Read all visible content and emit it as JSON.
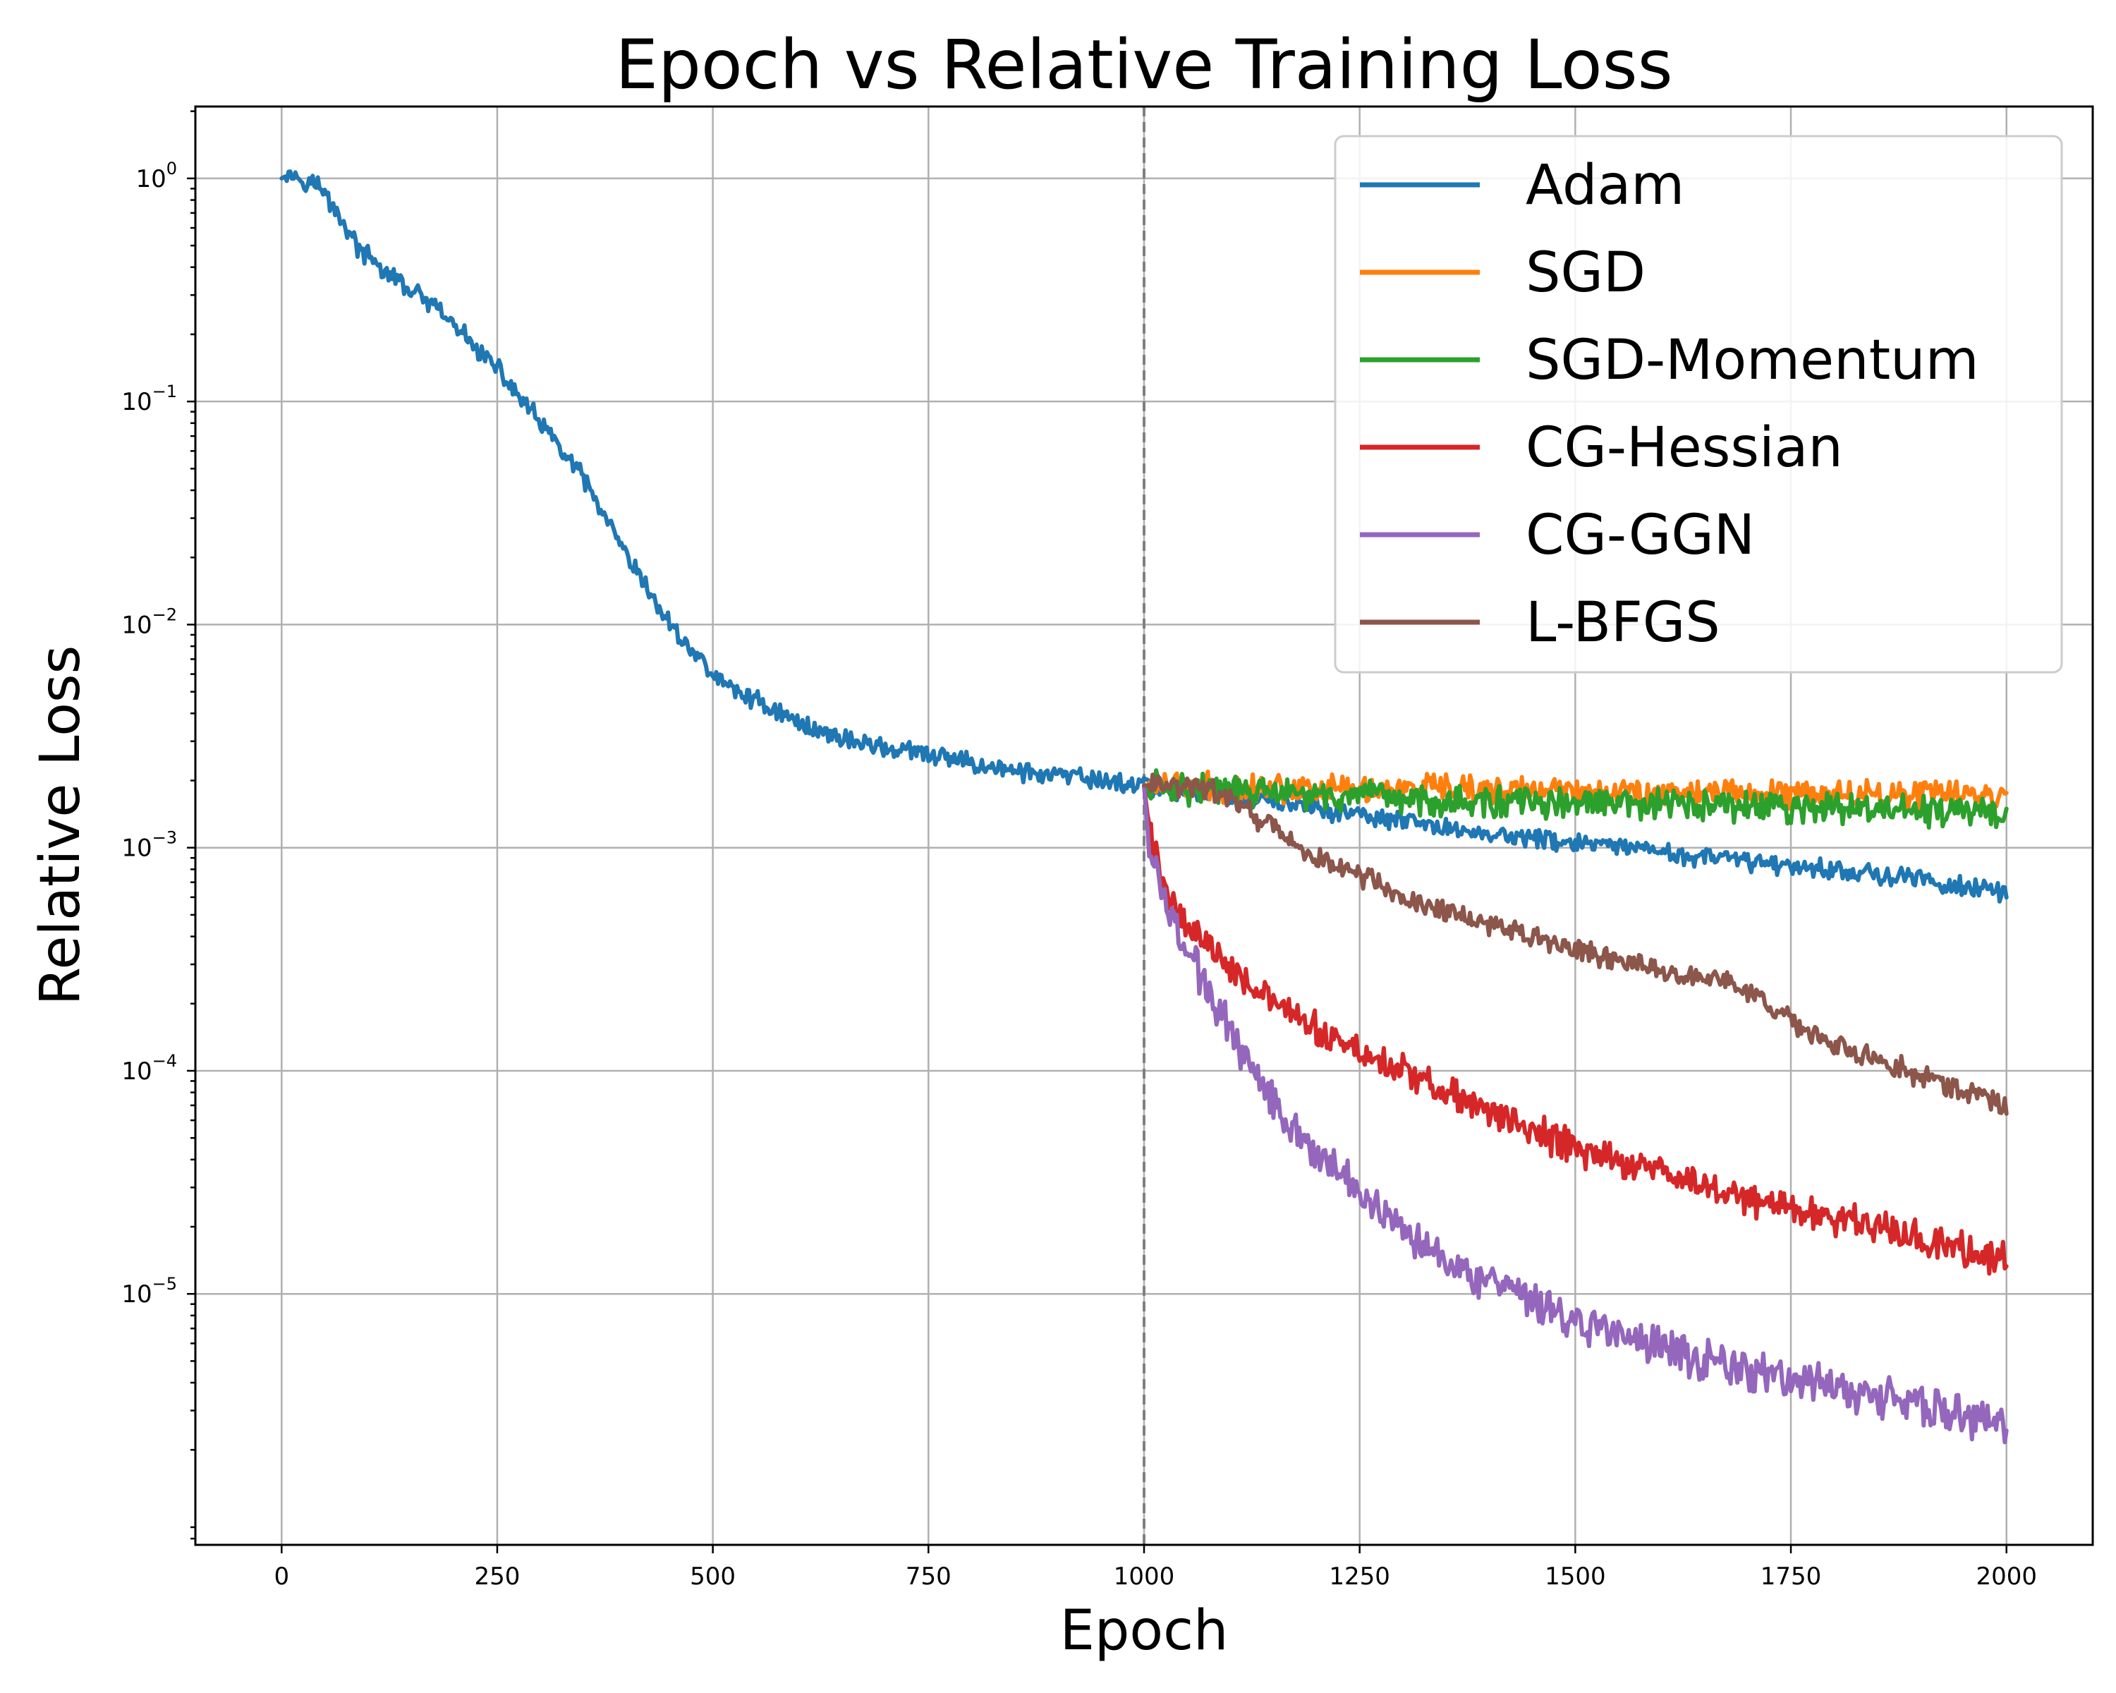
{
  "chart_data": {
    "type": "line",
    "title": "Epoch vs Relative Training Loss",
    "xlabel": "Epoch",
    "ylabel": "Relative Loss",
    "xlim": [
      -100,
      2100
    ],
    "ylim": [
      7.5e-07,
      2.1
    ],
    "yscale": "log",
    "grid": true,
    "legend_position": "top-right",
    "x_ticks": [
      0,
      250,
      500,
      750,
      1000,
      1250,
      1500,
      1750,
      2000
    ],
    "x_tick_labels": [
      "0",
      "250",
      "500",
      "750",
      "1000",
      "1250",
      "1500",
      "1750",
      "2000"
    ],
    "y_ticks": [
      1,
      0.1,
      0.01,
      0.001,
      0.0001,
      1e-05
    ],
    "y_tick_labels": [
      {
        "base": "10",
        "exp": "0"
      },
      {
        "base": "10",
        "exp": "−1"
      },
      {
        "base": "10",
        "exp": "−2"
      },
      {
        "base": "10",
        "exp": "−3"
      },
      {
        "base": "10",
        "exp": "−4"
      },
      {
        "base": "10",
        "exp": "−5"
      }
    ],
    "switch_epoch": 1000,
    "series": [
      {
        "name": "Adam",
        "color": "#1f77b4",
        "x": [
          0,
          10,
          40,
          60,
          90,
          120,
          180,
          250,
          300,
          350,
          400,
          450,
          500,
          520,
          560,
          600,
          650,
          700,
          750,
          800,
          850,
          900,
          950,
          1000,
          1100,
          1200,
          1300,
          1400,
          1500,
          1600,
          1700,
          1800,
          1900,
          2000
        ],
        "y": [
          1.0,
          1.05,
          0.95,
          0.75,
          0.48,
          0.38,
          0.26,
          0.14,
          0.08,
          0.045,
          0.02,
          0.01,
          0.006,
          0.0052,
          0.0044,
          0.0036,
          0.0031,
          0.0028,
          0.0026,
          0.0024,
          0.0022,
          0.0021,
          0.002,
          0.0019,
          0.0017,
          0.0015,
          0.0013,
          0.00115,
          0.00105,
          0.00095,
          0.00087,
          0.0008,
          0.00072,
          0.00062
        ]
      },
      {
        "name": "SGD",
        "color": "#ff7f0e",
        "x": [
          1000,
          1200,
          1400,
          1600,
          1800,
          2000
        ],
        "y": [
          0.0019,
          0.00185,
          0.0018,
          0.00178,
          0.00175,
          0.00172
        ]
      },
      {
        "name": "SGD-Momentum",
        "color": "#2ca02c",
        "x": [
          1000,
          1200,
          1400,
          1600,
          1800,
          2000
        ],
        "y": [
          0.0019,
          0.0017,
          0.0016,
          0.00155,
          0.0015,
          0.00142
        ]
      },
      {
        "name": "CG-Hessian",
        "color": "#d62728",
        "x": [
          1000,
          1005,
          1020,
          1050,
          1100,
          1150,
          1200,
          1300,
          1400,
          1500,
          1600,
          1700,
          1800,
          1900,
          2000
        ],
        "y": [
          0.0019,
          0.0013,
          0.0007,
          0.00045,
          0.0003,
          0.0002,
          0.00015,
          0.0001,
          6.5e-05,
          4.5e-05,
          3.5e-05,
          2.7e-05,
          2.2e-05,
          1.8e-05,
          1.4e-05
        ]
      },
      {
        "name": "CG-GGN",
        "color": "#9467bd",
        "x": [
          1000,
          1005,
          1020,
          1050,
          1100,
          1150,
          1200,
          1300,
          1400,
          1500,
          1600,
          1700,
          1800,
          1900,
          2000
        ],
        "y": [
          0.0019,
          0.0011,
          0.0006,
          0.00035,
          0.00015,
          7.5e-05,
          4.2e-05,
          2e-05,
          1.1e-05,
          7.5e-06,
          5.8e-06,
          4.5e-06,
          3.8e-06,
          3.2e-06,
          2.5e-06
        ]
      },
      {
        "name": "L-BFGS",
        "color": "#8c564b",
        "x": [
          1000,
          1050,
          1100,
          1150,
          1200,
          1250,
          1300,
          1400,
          1500,
          1600,
          1680,
          1720,
          1800,
          1900,
          2000
        ],
        "y": [
          0.0019,
          0.0019,
          0.0017,
          0.0012,
          0.0009,
          0.00075,
          0.0006,
          0.00045,
          0.00035,
          0.00028,
          0.00025,
          0.0002,
          0.00013,
          9.5e-05,
          7e-05
        ]
      }
    ]
  }
}
